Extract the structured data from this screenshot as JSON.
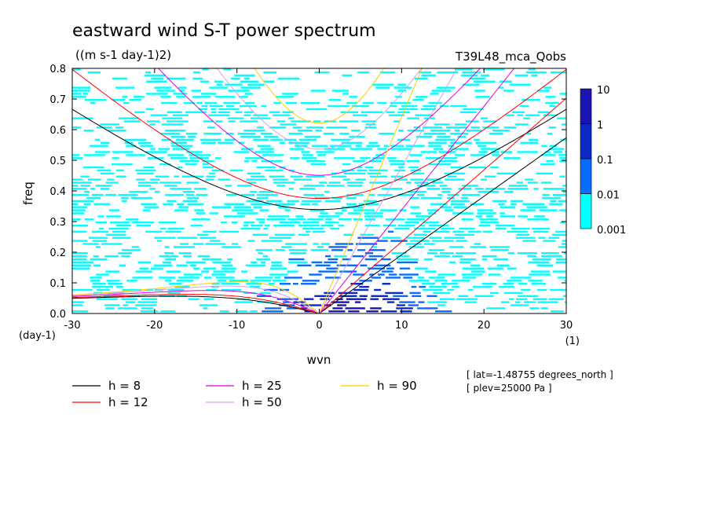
{
  "title": "eastward wind S-T power spectrum",
  "units": "((m s-1 day-1)2)",
  "experiment": "T39L48_mca_Qobs",
  "info": [
    "[ lat=-1.48755 degrees_north ]",
    "[ plev=25000 Pa ]"
  ],
  "chart_data": {
    "type": "heatmap",
    "title": "eastward wind S-T power spectrum",
    "xlabel": "wvn",
    "ylabel": "freq",
    "x_unit_label": "(1)",
    "y_unit_label": "(day-1)",
    "xlim": [
      -30,
      30
    ],
    "ylim": [
      0,
      0.8
    ],
    "x_ticks": [
      -30,
      -20,
      -10,
      0,
      10,
      20,
      30
    ],
    "x_tick_labels": [
      "-30",
      "-20",
      "-10",
      "0",
      "10",
      "20",
      "30"
    ],
    "y_ticks": [
      0,
      0.1,
      0.2,
      0.3,
      0.4,
      0.5,
      0.6,
      0.7,
      0.8
    ],
    "y_tick_labels": [
      "0.0",
      "0.1",
      "0.2",
      "0.3",
      "0.4",
      "0.5",
      "0.6",
      "0.7",
      "0.8"
    ],
    "color_levels": [
      0.001,
      0.01,
      0.1,
      1,
      10
    ],
    "color_level_labels": [
      "0.001",
      "0.01",
      "0.1",
      "1",
      "10"
    ],
    "color_scale": [
      "#00ffff",
      "#0a6cff",
      "#0a2ac8",
      "#1a14b4"
    ],
    "log_scale": true,
    "dispersion_curves": [
      {
        "name": "h = 8",
        "h": 8,
        "color": "#000000"
      },
      {
        "name": "h = 12",
        "h": 12,
        "color": "#ff0000"
      },
      {
        "name": "h = 25",
        "h": 25,
        "color": "#e000e0"
      },
      {
        "name": "h = 50",
        "h": 50,
        "color": "#d9a0e8"
      },
      {
        "name": "h = 90",
        "h": 90,
        "color": "#ffcc00"
      }
    ]
  }
}
